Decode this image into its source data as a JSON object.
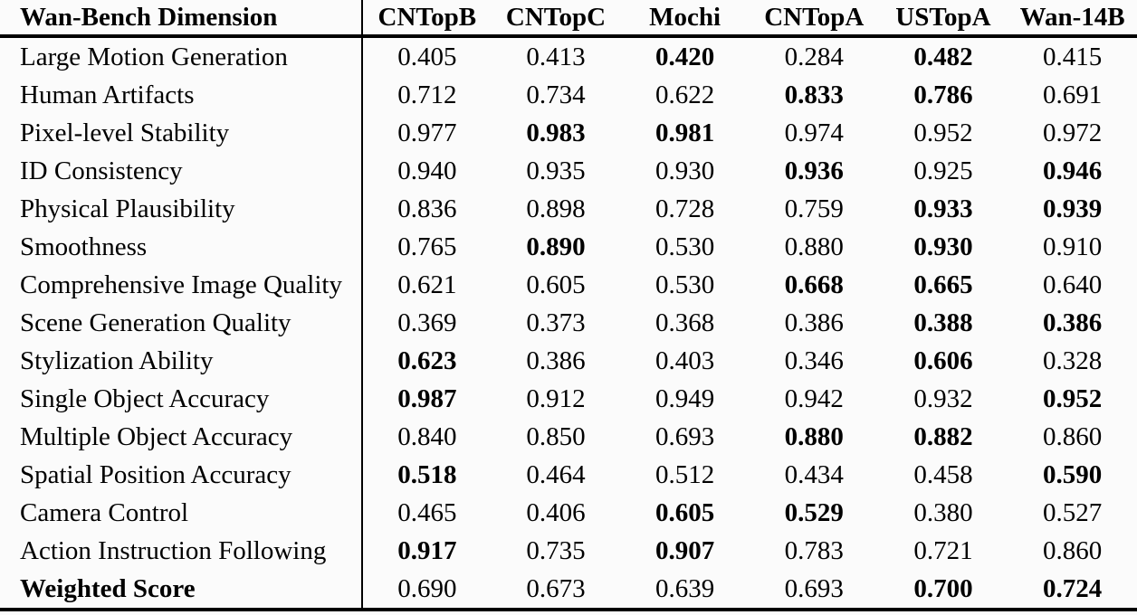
{
  "page": {
    "background_color": "#fbfbfb",
    "text_color": "#000000",
    "rule_color": "#000000"
  },
  "table": {
    "header": {
      "dimension_column": "Wan-Bench Dimension",
      "model_columns": [
        "CNTopB",
        "CNTopC",
        "Mochi",
        "CNTopA",
        "USTopA",
        "Wan-14B"
      ]
    },
    "rows": [
      {
        "dimension": "Large Motion Generation",
        "dimension_bold": false,
        "values": [
          "0.405",
          "0.413",
          "0.420",
          "0.284",
          "0.482",
          "0.415"
        ],
        "bold_mask": [
          false,
          false,
          true,
          false,
          true,
          false
        ]
      },
      {
        "dimension": "Human Artifacts",
        "dimension_bold": false,
        "values": [
          "0.712",
          "0.734",
          "0.622",
          "0.833",
          "0.786",
          "0.691"
        ],
        "bold_mask": [
          false,
          false,
          false,
          true,
          true,
          false
        ]
      },
      {
        "dimension": "Pixel-level Stability",
        "dimension_bold": false,
        "values": [
          "0.977",
          "0.983",
          "0.981",
          "0.974",
          "0.952",
          "0.972"
        ],
        "bold_mask": [
          false,
          true,
          true,
          false,
          false,
          false
        ]
      },
      {
        "dimension": "ID Consistency",
        "dimension_bold": false,
        "values": [
          "0.940",
          "0.935",
          "0.930",
          "0.936",
          "0.925",
          "0.946"
        ],
        "bold_mask": [
          false,
          false,
          false,
          true,
          false,
          true
        ]
      },
      {
        "dimension": "Physical Plausibility",
        "dimension_bold": false,
        "values": [
          "0.836",
          "0.898",
          "0.728",
          "0.759",
          "0.933",
          "0.939"
        ],
        "bold_mask": [
          false,
          false,
          false,
          false,
          true,
          true
        ]
      },
      {
        "dimension": "Smoothness",
        "dimension_bold": false,
        "values": [
          "0.765",
          "0.890",
          "0.530",
          "0.880",
          "0.930",
          "0.910"
        ],
        "bold_mask": [
          false,
          true,
          false,
          false,
          true,
          false
        ]
      },
      {
        "dimension": "Comprehensive Image Quality",
        "dimension_bold": false,
        "values": [
          "0.621",
          "0.605",
          "0.530",
          "0.668",
          "0.665",
          "0.640"
        ],
        "bold_mask": [
          false,
          false,
          false,
          true,
          true,
          false
        ]
      },
      {
        "dimension": "Scene Generation Quality",
        "dimension_bold": false,
        "values": [
          "0.369",
          "0.373",
          "0.368",
          "0.386",
          "0.388",
          "0.386"
        ],
        "bold_mask": [
          false,
          false,
          false,
          false,
          true,
          true
        ]
      },
      {
        "dimension": "Stylization Ability",
        "dimension_bold": false,
        "values": [
          "0.623",
          "0.386",
          "0.403",
          "0.346",
          "0.606",
          "0.328"
        ],
        "bold_mask": [
          true,
          false,
          false,
          false,
          true,
          false
        ]
      },
      {
        "dimension": "Single Object Accuracy",
        "dimension_bold": false,
        "values": [
          "0.987",
          "0.912",
          "0.949",
          "0.942",
          "0.932",
          "0.952"
        ],
        "bold_mask": [
          true,
          false,
          false,
          false,
          false,
          true
        ]
      },
      {
        "dimension": "Multiple Object Accuracy",
        "dimension_bold": false,
        "values": [
          "0.840",
          "0.850",
          "0.693",
          "0.880",
          "0.882",
          "0.860"
        ],
        "bold_mask": [
          false,
          false,
          false,
          true,
          true,
          false
        ]
      },
      {
        "dimension": "Spatial Position Accuracy",
        "dimension_bold": false,
        "values": [
          "0.518",
          "0.464",
          "0.512",
          "0.434",
          "0.458",
          "0.590"
        ],
        "bold_mask": [
          true,
          false,
          false,
          false,
          false,
          true
        ]
      },
      {
        "dimension": "Camera Control",
        "dimension_bold": false,
        "values": [
          "0.465",
          "0.406",
          "0.605",
          "0.529",
          "0.380",
          "0.527"
        ],
        "bold_mask": [
          false,
          false,
          true,
          true,
          false,
          false
        ]
      },
      {
        "dimension": "Action Instruction Following",
        "dimension_bold": false,
        "values": [
          "0.917",
          "0.735",
          "0.907",
          "0.783",
          "0.721",
          "0.860"
        ],
        "bold_mask": [
          true,
          false,
          true,
          false,
          false,
          false
        ]
      },
      {
        "dimension": "Weighted Score",
        "dimension_bold": true,
        "values": [
          "0.690",
          "0.673",
          "0.639",
          "0.693",
          "0.700",
          "0.724"
        ],
        "bold_mask": [
          false,
          false,
          false,
          false,
          true,
          true
        ]
      }
    ]
  }
}
